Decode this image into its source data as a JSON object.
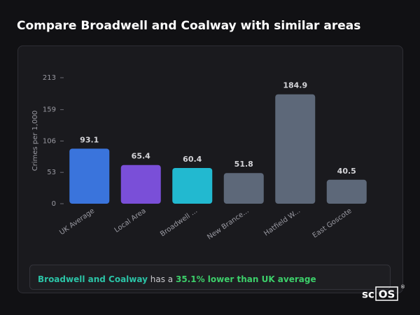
{
  "chart_data": {
    "type": "bar",
    "title": "Compare Broadwell and Coalway with similar areas",
    "y_label": "Crimes per 1,000",
    "categories": [
      "UK Average",
      "Local Area",
      "Broadwell ...",
      "New Brance...",
      "Hatfield W...",
      "East Goscote"
    ],
    "values": [
      93.1,
      65.4,
      60.4,
      51.8,
      184.9,
      40.5
    ],
    "colors": [
      "#3a74dc",
      "#7a4fd8",
      "#22b9d0",
      "#5d6879",
      "#5d6879",
      "#5d6879"
    ],
    "ylim": [
      0,
      213
    ],
    "yticks": [
      0,
      53,
      106,
      159,
      213
    ]
  },
  "summary": {
    "area": "Broadwell and Coalway",
    "connector": "has a",
    "highlight": "35.1% lower than UK average"
  },
  "logo": {
    "prefix": "sc",
    "boxed": "OS",
    "mark": "®"
  }
}
